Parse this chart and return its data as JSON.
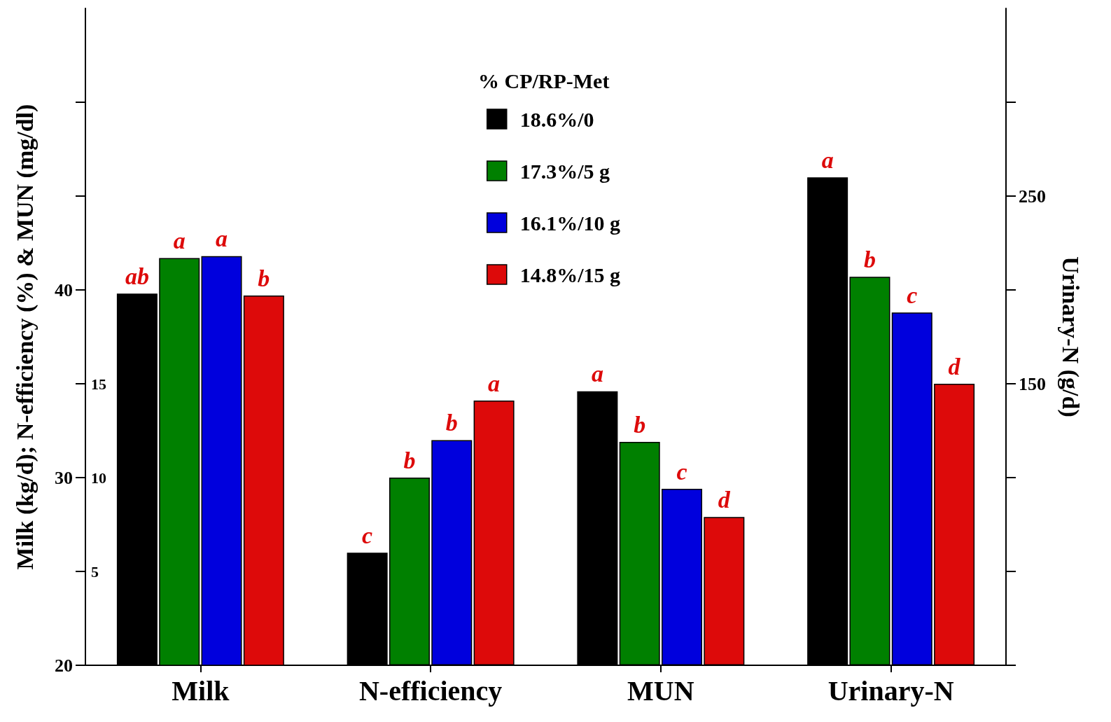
{
  "chart_data": {
    "type": "bar",
    "ylabel": "Milk (kg/d); N-efficiency (%) & MUN (mg/dl)",
    "y2label": "Urinary-N (g/d)",
    "legend_title": "% CP/RP-Met",
    "categories": [
      "Milk",
      "N-efficiency",
      "MUN",
      "Urinary-N"
    ],
    "series": [
      {
        "name": "18.6%/0",
        "color": "#000000",
        "values": [
          39.8,
          null,
          null,
          null
        ],
        "value_labels": [
          "ab",
          null,
          null,
          null
        ]
      },
      {
        "name": "17.3%/5 g",
        "color": "#008000",
        "values": [
          41.7,
          null,
          null,
          null
        ],
        "value_labels": [
          "a",
          null,
          null,
          null
        ]
      },
      {
        "name": "16.1%/10 g",
        "color": "#0000dd",
        "values": [
          41.8,
          null,
          null,
          null
        ],
        "value_labels": [
          "a",
          null,
          null,
          null
        ]
      },
      {
        "name": "14.8%/15 g",
        "color": "#dd0a0a",
        "values": [
          39.7,
          null,
          null,
          null
        ],
        "value_labels": [
          "b",
          null,
          null,
          null
        ]
      },
      {
        "color": "#000000",
        "axis": "y3",
        "values": [
          null,
          6.0,
          14.6,
          null
        ],
        "value_labels": [
          null,
          "c",
          "a",
          null
        ]
      },
      {
        "color": "#008000",
        "axis": "y3",
        "values": [
          null,
          10.0,
          11.9,
          null
        ],
        "value_labels": [
          null,
          "b",
          "b",
          null
        ]
      },
      {
        "color": "#0000dd",
        "axis": "y3",
        "values": [
          null,
          12.0,
          9.4,
          null
        ],
        "value_labels": [
          null,
          "b",
          "c",
          null
        ]
      },
      {
        "color": "#dd0a0a",
        "axis": "y3",
        "values": [
          null,
          14.1,
          7.9,
          null
        ],
        "value_labels": [
          null,
          "a",
          "d",
          null
        ]
      },
      {
        "color": "#000000",
        "axis": "y2",
        "values": [
          null,
          null,
          null,
          260
        ],
        "value_labels": [
          null,
          null,
          null,
          "a"
        ]
      },
      {
        "color": "#008000",
        "axis": "y2",
        "values": [
          null,
          null,
          null,
          207
        ],
        "value_labels": [
          null,
          null,
          null,
          "b"
        ]
      },
      {
        "color": "#0000dd",
        "axis": "y2",
        "values": [
          null,
          null,
          null,
          188
        ],
        "value_labels": [
          null,
          null,
          null,
          "c"
        ]
      },
      {
        "color": "#dd0a0a",
        "axis": "y2",
        "values": [
          null,
          null,
          null,
          150
        ],
        "value_labels": [
          null,
          null,
          null,
          "d"
        ]
      }
    ],
    "ylim": [
      20,
      55
    ],
    "yticks": [
      20,
      {
        "value": 25,
        "label": null
      },
      30,
      {
        "value": 35,
        "label": null
      },
      40,
      {
        "value": 45,
        "label": null
      },
      {
        "value": 50,
        "label": null
      }
    ],
    "y3lim": [
      0,
      35
    ],
    "y3ticks": [
      5,
      10,
      15
    ],
    "y2lim": [
      0,
      350
    ],
    "y2ticks": [
      {
        "value": 0,
        "label": null
      },
      {
        "value": 50,
        "label": null
      },
      {
        "value": 100,
        "label": null
      },
      150,
      {
        "value": 200,
        "label": null
      },
      250,
      {
        "value": 300,
        "label": null
      }
    ],
    "legend": "top",
    "grid": false
  }
}
